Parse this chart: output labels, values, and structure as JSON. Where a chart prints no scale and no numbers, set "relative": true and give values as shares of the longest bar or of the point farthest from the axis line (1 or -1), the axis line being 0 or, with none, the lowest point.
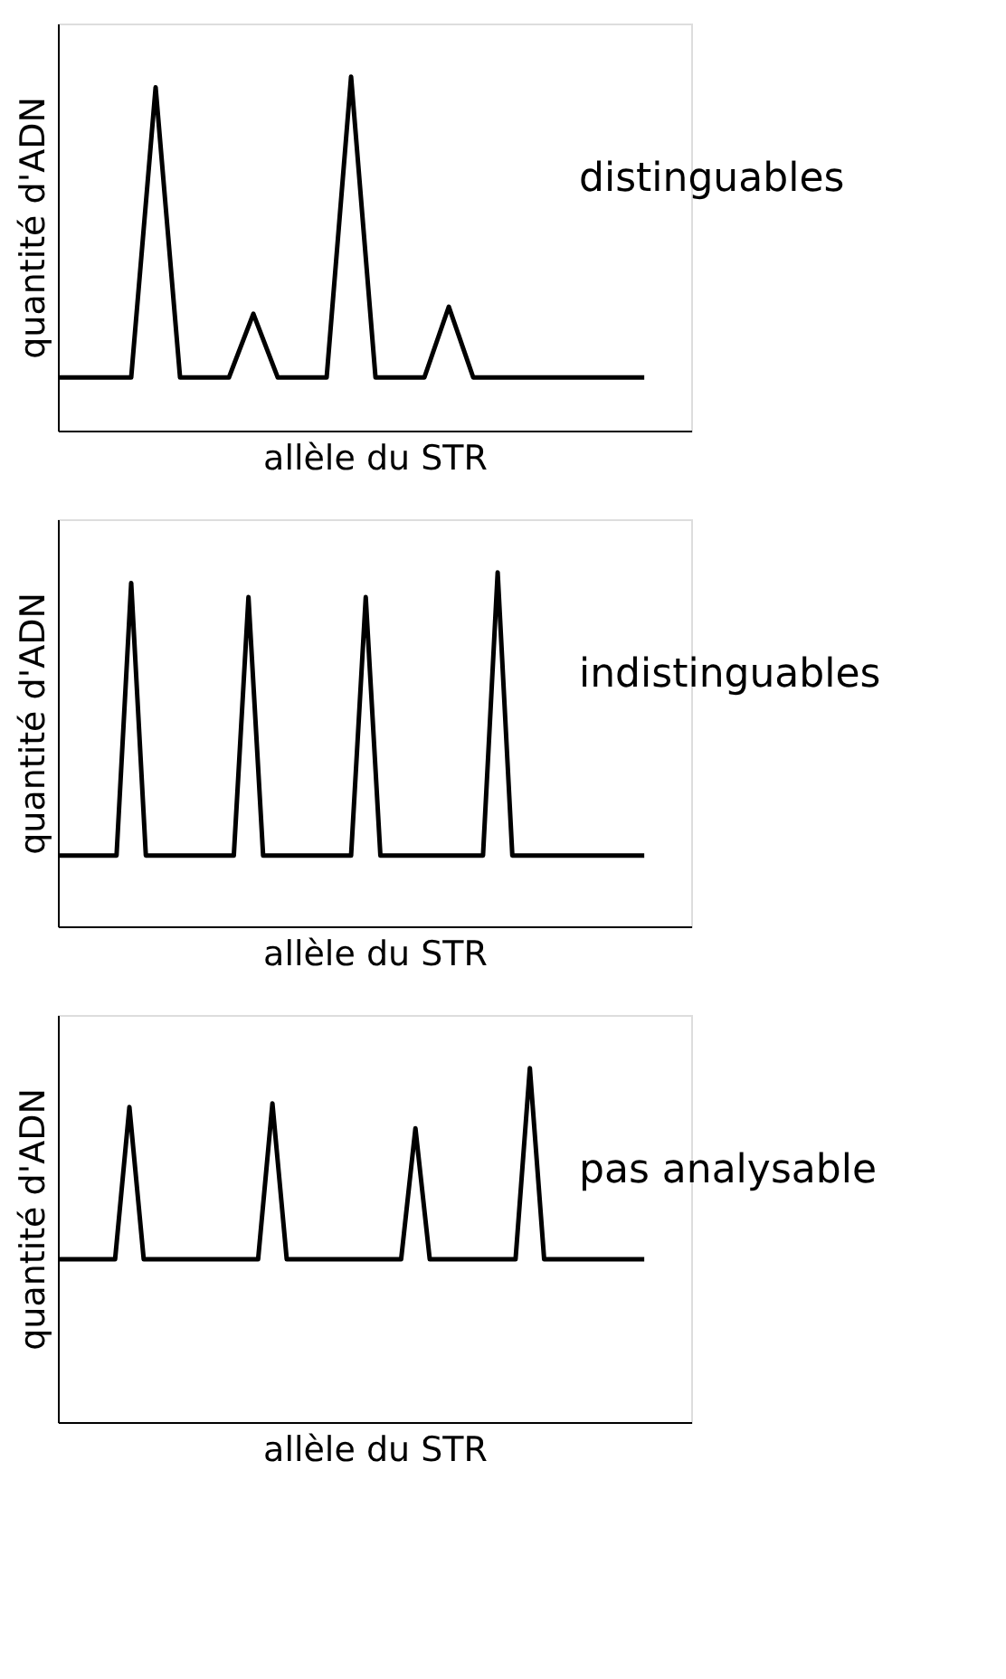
{
  "chart_data": [
    {
      "type": "line",
      "relative": true,
      "color": "#000000",
      "xlabel": "allèle du STR",
      "ylabel": "quantité d'ADN",
      "annotations": [
        "distinguables"
      ],
      "categories": [
        null,
        null,
        null,
        null,
        null,
        null,
        null,
        null,
        null,
        null,
        null,
        null,
        null,
        null,
        null,
        null,
        null,
        null,
        null,
        null,
        null,
        null,
        null,
        null,
        null
      ],
      "values": [
        0.15,
        0.15,
        0.15,
        0.15,
        0.97,
        0.15,
        0.15,
        0.15,
        0.33,
        0.15,
        0.15,
        0.15,
        1,
        0.15,
        0.15,
        0.15,
        0.35,
        0.15,
        0.15,
        0.15,
        0.15,
        0.15,
        0.15,
        0.15,
        0.15
      ]
    },
    {
      "type": "line",
      "relative": true,
      "color": "#000000",
      "xlabel": "allèle du STR",
      "ylabel": "quantité d'ADN",
      "annotations": [
        "indistinguables"
      ],
      "categories": [
        null,
        null,
        null,
        null,
        null,
        null,
        null,
        null,
        null,
        null,
        null,
        null,
        null,
        null,
        null,
        null,
        null,
        null,
        null,
        null,
        null,
        null,
        null,
        null,
        null,
        null,
        null,
        null,
        null,
        null,
        null,
        null,
        null,
        null,
        null,
        null,
        null,
        null,
        null,
        null,
        null
      ],
      "values": [
        0.2,
        0.2,
        0.2,
        0.2,
        0.2,
        0.97,
        0.2,
        0.2,
        0.2,
        0.2,
        0.2,
        0.2,
        0.2,
        0.93,
        0.2,
        0.2,
        0.2,
        0.2,
        0.2,
        0.2,
        0.2,
        0.93,
        0.2,
        0.2,
        0.2,
        0.2,
        0.2,
        0.2,
        0.2,
        0.2,
        1,
        0.2,
        0.2,
        0.2,
        0.2,
        0.2,
        0.2,
        0.2,
        0.2,
        0.2,
        0.2
      ]
    },
    {
      "type": "line",
      "relative": true,
      "color": "#000000",
      "xlabel": "allèle du STR",
      "ylabel": "quantité d'ADN",
      "annotations": [
        "pas analysable"
      ],
      "categories": [
        null,
        null,
        null,
        null,
        null,
        null,
        null,
        null,
        null,
        null,
        null,
        null,
        null,
        null,
        null,
        null,
        null,
        null,
        null,
        null,
        null,
        null,
        null,
        null,
        null,
        null,
        null,
        null,
        null,
        null,
        null,
        null,
        null,
        null,
        null,
        null,
        null,
        null,
        null,
        null,
        null,
        null
      ],
      "values": [
        0.46,
        0.46,
        0.46,
        0.46,
        0.46,
        0.89,
        0.46,
        0.46,
        0.46,
        0.46,
        0.46,
        0.46,
        0.46,
        0.46,
        0.46,
        0.9,
        0.46,
        0.46,
        0.46,
        0.46,
        0.46,
        0.46,
        0.46,
        0.46,
        0.46,
        0.83,
        0.46,
        0.46,
        0.46,
        0.46,
        0.46,
        0.46,
        0.46,
        1,
        0.46,
        0.46,
        0.46,
        0.46,
        0.46,
        0.46,
        0.46,
        0.46
      ]
    }
  ]
}
